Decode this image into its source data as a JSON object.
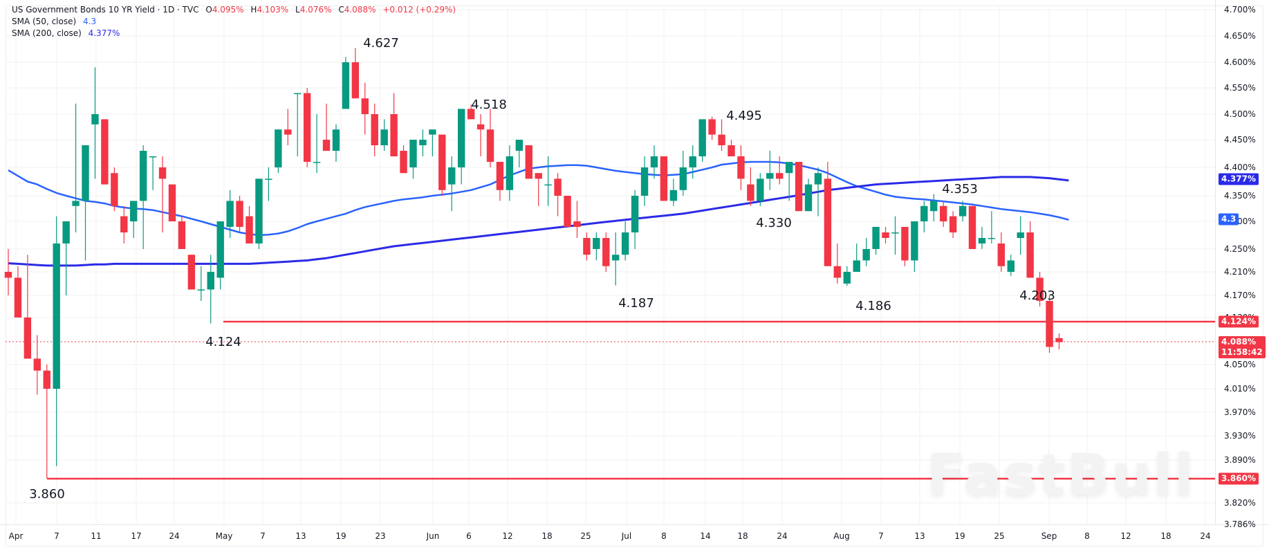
{
  "legend": {
    "symbol": "US Government Bonds 10 YR Yield · 1D · TVC",
    "o_label": "O",
    "o": "4.095%",
    "h_label": "H",
    "h": "4.103%",
    "l_label": "L",
    "l": "4.076%",
    "c_label": "C",
    "c": "4.088%",
    "change": "+0.012 (+0.29%)",
    "sma50_label": "SMA (50, close)",
    "sma50_value": "4.3",
    "sma200_label": "SMA (200, close)",
    "sma200_value": "4.377%"
  },
  "colors": {
    "up": "#089981",
    "down": "#f23645",
    "sma50": "#2962ff",
    "sma200": "#2a2ae8",
    "support": "#f23645",
    "grid": "#f0f0f0",
    "text": "#131722"
  },
  "badges": {
    "sma200": "4.377%",
    "sma50": "4.3",
    "support1": "4.124%",
    "last_price": "4.088%",
    "countdown": "11:58:42",
    "support2": "3.860%"
  },
  "watermark": "FastBull",
  "chart_data": {
    "type": "candlestick",
    "title": "US Government Bonds 10 YR Yield · 1D · TVC",
    "y_axis": {
      "unit": "%",
      "ticks": [
        "4.700%",
        "4.650%",
        "4.600%",
        "4.550%",
        "4.500%",
        "4.450%",
        "4.400%",
        "4.350%",
        "4.300%",
        "4.250%",
        "4.210%",
        "4.170%",
        "4.130%",
        "4.050%",
        "4.010%",
        "3.970%",
        "3.930%",
        "3.890%",
        "3.820%",
        "3.786%"
      ],
      "range": [
        3.786,
        4.7
      ]
    },
    "x_axis": {
      "ticks": [
        "Apr",
        "7",
        "11",
        "17",
        "24",
        "May",
        "7",
        "13",
        "19",
        "23",
        "Jun",
        "6",
        "12",
        "18",
        "25",
        "Jul",
        "8",
        "14",
        "18",
        "24",
        "Aug",
        "7",
        "13",
        "19",
        "25",
        "Sep",
        "8",
        "12",
        "18",
        "24"
      ]
    },
    "annotations": [
      {
        "label": "4.627",
        "type": "high"
      },
      {
        "label": "4.518",
        "type": "high"
      },
      {
        "label": "4.495",
        "type": "high"
      },
      {
        "label": "4.353",
        "type": "high"
      },
      {
        "label": "4.330",
        "type": "low"
      },
      {
        "label": "4.187",
        "type": "low"
      },
      {
        "label": "4.186",
        "type": "low"
      },
      {
        "label": "4.203",
        "type": "low"
      },
      {
        "label": "4.124",
        "type": "low"
      },
      {
        "label": "3.860",
        "type": "low"
      }
    ],
    "horizontal_lines": [
      {
        "value": 4.124,
        "label": "4.124%"
      },
      {
        "value": 3.86,
        "label": "3.860%"
      }
    ],
    "last": {
      "open": 4.095,
      "high": 4.103,
      "low": 4.076,
      "close": 4.088,
      "change": "+0.012",
      "change_pct": "+0.29%"
    },
    "series": [
      {
        "name": "SMA (50, close)",
        "last": 4.3
      },
      {
        "name": "SMA (200, close)",
        "last": 4.377
      }
    ],
    "candles": [
      [
        4.21,
        4.25,
        4.17,
        4.2
      ],
      [
        4.2,
        4.22,
        4.14,
        4.13
      ],
      [
        4.13,
        4.24,
        4.11,
        4.06
      ],
      [
        4.06,
        4.1,
        4.0,
        4.04
      ],
      [
        4.04,
        4.05,
        3.86,
        4.01
      ],
      [
        4.01,
        4.31,
        3.88,
        4.26
      ],
      [
        4.26,
        4.3,
        4.17,
        4.3
      ],
      [
        4.33,
        4.52,
        4.28,
        4.34
      ],
      [
        4.34,
        4.43,
        4.23,
        4.44
      ],
      [
        4.48,
        4.59,
        4.38,
        4.5
      ],
      [
        4.49,
        4.49,
        4.37,
        4.37
      ],
      [
        4.39,
        4.4,
        4.32,
        4.33
      ],
      [
        4.31,
        4.33,
        4.26,
        4.28
      ],
      [
        4.3,
        4.32,
        4.27,
        4.34
      ],
      [
        4.34,
        4.44,
        4.25,
        4.43
      ],
      [
        4.42,
        4.41,
        4.36,
        4.42
      ],
      [
        4.4,
        4.42,
        4.28,
        4.38
      ],
      [
        4.37,
        4.37,
        4.31,
        4.3
      ],
      [
        4.3,
        4.31,
        4.25,
        4.25
      ],
      [
        4.24,
        4.22,
        4.18,
        4.18
      ],
      [
        4.18,
        4.22,
        4.16,
        4.18
      ],
      [
        4.18,
        4.24,
        4.12,
        4.21
      ],
      [
        4.2,
        4.29,
        4.18,
        4.3
      ],
      [
        4.29,
        4.36,
        4.27,
        4.34
      ],
      [
        4.34,
        4.35,
        4.28,
        4.29
      ],
      [
        4.31,
        4.33,
        4.26,
        4.26
      ],
      [
        4.26,
        4.36,
        4.25,
        4.38
      ],
      [
        4.38,
        4.4,
        4.34,
        4.38
      ],
      [
        4.4,
        4.47,
        4.39,
        4.47
      ],
      [
        4.47,
        4.51,
        4.44,
        4.46
      ],
      [
        4.54,
        4.54,
        4.42,
        4.54
      ],
      [
        4.54,
        4.55,
        4.4,
        4.41
      ],
      [
        4.41,
        4.5,
        4.39,
        4.41
      ],
      [
        4.45,
        4.52,
        4.43,
        4.43
      ],
      [
        4.43,
        4.48,
        4.41,
        4.47
      ],
      [
        4.51,
        4.61,
        4.51,
        4.6
      ],
      [
        4.6,
        4.627,
        4.53,
        4.53
      ],
      [
        4.53,
        4.56,
        4.46,
        4.5
      ],
      [
        4.5,
        4.52,
        4.42,
        4.44
      ],
      [
        4.44,
        4.49,
        4.43,
        4.47
      ],
      [
        4.5,
        4.54,
        4.42,
        4.42
      ],
      [
        4.43,
        4.44,
        4.39,
        4.39
      ],
      [
        4.4,
        4.44,
        4.38,
        4.45
      ],
      [
        4.44,
        4.47,
        4.42,
        4.45
      ],
      [
        4.46,
        4.47,
        4.42,
        4.47
      ],
      [
        4.46,
        4.46,
        4.35,
        4.36
      ],
      [
        4.37,
        4.42,
        4.32,
        4.4
      ],
      [
        4.4,
        4.48,
        4.37,
        4.51
      ],
      [
        4.51,
        4.518,
        4.49,
        4.49
      ],
      [
        4.48,
        4.5,
        4.42,
        4.47
      ],
      [
        4.47,
        4.51,
        4.4,
        4.41
      ],
      [
        4.41,
        4.41,
        4.34,
        4.36
      ],
      [
        4.36,
        4.44,
        4.34,
        4.42
      ],
      [
        4.43,
        4.45,
        4.4,
        4.45
      ],
      [
        4.44,
        4.44,
        4.38,
        4.38
      ],
      [
        4.39,
        4.39,
        4.33,
        4.38
      ],
      [
        4.37,
        4.42,
        4.33,
        4.37
      ],
      [
        4.38,
        4.39,
        4.31,
        4.35
      ],
      [
        4.35,
        4.35,
        4.29,
        4.29
      ],
      [
        4.3,
        4.34,
        4.27,
        4.29
      ],
      [
        4.27,
        4.28,
        4.23,
        4.24
      ],
      [
        4.25,
        4.28,
        4.23,
        4.27
      ],
      [
        4.27,
        4.28,
        4.21,
        4.22
      ],
      [
        4.23,
        4.28,
        4.187,
        4.24
      ],
      [
        4.24,
        4.3,
        4.23,
        4.28
      ],
      [
        4.28,
        4.36,
        4.25,
        4.35
      ],
      [
        4.35,
        4.42,
        4.33,
        4.4
      ],
      [
        4.4,
        4.44,
        4.38,
        4.42
      ],
      [
        4.42,
        4.42,
        4.34,
        4.34
      ],
      [
        4.34,
        4.38,
        4.33,
        4.36
      ],
      [
        4.36,
        4.43,
        4.35,
        4.4
      ],
      [
        4.4,
        4.44,
        4.38,
        4.42
      ],
      [
        4.42,
        4.45,
        4.41,
        4.49
      ],
      [
        4.49,
        4.495,
        4.45,
        4.46
      ],
      [
        4.46,
        4.49,
        4.43,
        4.44
      ],
      [
        4.44,
        4.45,
        4.42,
        4.42
      ],
      [
        4.42,
        4.44,
        4.36,
        4.38
      ],
      [
        4.37,
        4.4,
        4.33,
        4.34
      ],
      [
        4.34,
        4.39,
        4.33,
        4.38
      ],
      [
        4.38,
        4.43,
        4.36,
        4.39
      ],
      [
        4.39,
        4.42,
        4.37,
        4.38
      ],
      [
        4.39,
        4.41,
        4.34,
        4.41
      ],
      [
        4.41,
        4.41,
        4.32,
        4.32
      ],
      [
        4.32,
        4.38,
        4.32,
        4.37
      ],
      [
        4.37,
        4.4,
        4.31,
        4.39
      ],
      [
        4.38,
        4.41,
        4.22,
        4.22
      ],
      [
        4.22,
        4.26,
        4.19,
        4.2
      ],
      [
        4.19,
        4.22,
        4.186,
        4.21
      ],
      [
        4.21,
        4.26,
        4.21,
        4.23
      ],
      [
        4.23,
        4.27,
        4.22,
        4.25
      ],
      [
        4.25,
        4.29,
        4.24,
        4.29
      ],
      [
        4.28,
        4.29,
        4.26,
        4.27
      ],
      [
        4.28,
        4.31,
        4.24,
        4.28
      ],
      [
        4.29,
        4.29,
        4.22,
        4.23
      ],
      [
        4.23,
        4.3,
        4.21,
        4.3
      ],
      [
        4.3,
        4.34,
        4.28,
        4.33
      ],
      [
        4.32,
        4.353,
        4.3,
        4.34
      ],
      [
        4.33,
        4.34,
        4.29,
        4.3
      ],
      [
        4.31,
        4.32,
        4.27,
        4.28
      ],
      [
        4.31,
        4.34,
        4.3,
        4.33
      ],
      [
        4.33,
        4.33,
        4.25,
        4.25
      ],
      [
        4.26,
        4.29,
        4.25,
        4.27
      ],
      [
        4.27,
        4.32,
        4.26,
        4.27
      ],
      [
        4.26,
        4.28,
        4.21,
        4.22
      ],
      [
        4.21,
        4.24,
        4.203,
        4.23
      ],
      [
        4.27,
        4.31,
        4.24,
        4.28
      ],
      [
        4.28,
        4.3,
        4.2,
        4.2
      ],
      [
        4.2,
        4.21,
        4.15,
        4.16
      ],
      [
        4.16,
        4.17,
        4.07,
        4.08
      ],
      [
        4.095,
        4.103,
        4.076,
        4.088
      ]
    ],
    "sma50": [
      4.395,
      4.385,
      4.375,
      4.37,
      4.362,
      4.355,
      4.35,
      4.345,
      4.34,
      4.338,
      4.335,
      4.33,
      4.327,
      4.325,
      4.324,
      4.322,
      4.318,
      4.314,
      4.31,
      4.305,
      4.3,
      4.295,
      4.29,
      4.285,
      4.28,
      4.277,
      4.275,
      4.276,
      4.278,
      4.282,
      4.288,
      4.295,
      4.3,
      4.305,
      4.31,
      4.315,
      4.322,
      4.328,
      4.332,
      4.336,
      4.34,
      4.343,
      4.345,
      4.347,
      4.35,
      4.352,
      4.354,
      4.357,
      4.36,
      4.365,
      4.37,
      4.378,
      4.386,
      4.392,
      4.398,
      4.4,
      4.402,
      4.403,
      4.404,
      4.404,
      4.403,
      4.4,
      4.397,
      4.394,
      4.392,
      4.39,
      4.388,
      4.387,
      4.386,
      4.387,
      4.388,
      4.392,
      4.396,
      4.4,
      4.405,
      4.407,
      4.409,
      4.41,
      4.41,
      4.41,
      4.409,
      4.407,
      4.404,
      4.4,
      4.396,
      4.39,
      4.382,
      4.374,
      4.367,
      4.362,
      4.357,
      4.352,
      4.348,
      4.346,
      4.344,
      4.343,
      4.341,
      4.339,
      4.337,
      4.335,
      4.333,
      4.33,
      4.327,
      4.324,
      4.322,
      4.32,
      4.318,
      4.315,
      4.312,
      4.308,
      4.303
    ],
    "sma200": [
      4.225,
      4.224,
      4.223,
      4.222,
      4.221,
      4.221,
      4.221,
      4.221,
      4.222,
      4.223,
      4.223,
      4.224,
      4.224,
      4.224,
      4.224,
      4.224,
      4.224,
      4.224,
      4.224,
      4.224,
      4.224,
      4.224,
      4.224,
      4.224,
      4.224,
      4.224,
      4.225,
      4.226,
      4.227,
      4.228,
      4.229,
      4.23,
      4.232,
      4.234,
      4.237,
      4.24,
      4.243,
      4.246,
      4.249,
      4.252,
      4.255,
      4.257,
      4.259,
      4.261,
      4.263,
      4.265,
      4.267,
      4.269,
      4.271,
      4.273,
      4.275,
      4.277,
      4.279,
      4.281,
      4.283,
      4.285,
      4.287,
      4.289,
      4.291,
      4.293,
      4.295,
      4.297,
      4.299,
      4.301,
      4.303,
      4.305,
      4.307,
      4.309,
      4.311,
      4.313,
      4.315,
      4.318,
      4.321,
      4.324,
      4.327,
      4.33,
      4.333,
      4.336,
      4.339,
      4.342,
      4.345,
      4.348,
      4.351,
      4.354,
      4.357,
      4.36,
      4.362,
      4.364,
      4.366,
      4.368,
      4.37,
      4.371,
      4.372,
      4.373,
      4.374,
      4.375,
      4.376,
      4.377,
      4.378,
      4.379,
      4.38,
      4.381,
      4.382,
      4.383,
      4.383,
      4.383,
      4.383,
      4.382,
      4.381,
      4.379,
      4.377
    ]
  }
}
